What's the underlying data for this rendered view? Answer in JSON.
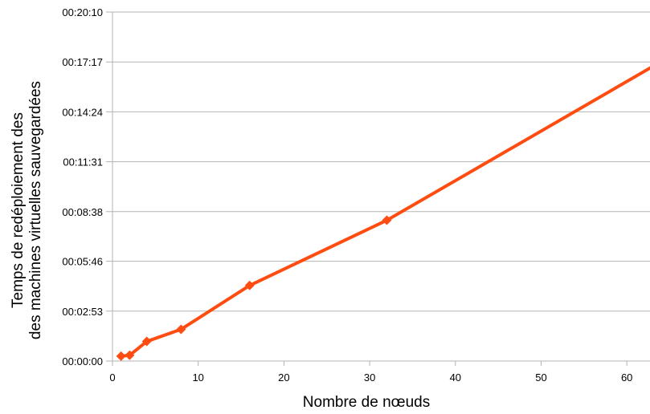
{
  "chart_data": {
    "type": "line",
    "title": "",
    "xlabel": "Nombre de nœuds",
    "ylabel": [
      "Temps de redéploiement des",
      "des machines virtuelles sauvegardées"
    ],
    "xlim": [
      0,
      64
    ],
    "ylim_seconds": [
      0,
      1210
    ],
    "x_ticks": [
      0,
      10,
      20,
      30,
      40,
      50,
      60
    ],
    "y_ticks": [
      {
        "seconds": 0,
        "label": "00:00:00"
      },
      {
        "seconds": 173,
        "label": "00:02:53"
      },
      {
        "seconds": 346,
        "label": "00:05:46"
      },
      {
        "seconds": 518,
        "label": "00:08:38"
      },
      {
        "seconds": 691,
        "label": "00:11:31"
      },
      {
        "seconds": 864,
        "label": "00:14:24"
      },
      {
        "seconds": 1037,
        "label": "00:17:17"
      },
      {
        "seconds": 1210,
        "label": "00:20:10"
      }
    ],
    "grid": "horizontal",
    "legend": "none",
    "series": [
      {
        "color": "#ff4d12",
        "marker": "diamond",
        "x": [
          1,
          2,
          4,
          8,
          16,
          32,
          64
        ],
        "y_seconds": [
          17,
          20,
          68,
          110,
          262,
          488,
          1038
        ]
      }
    ]
  }
}
